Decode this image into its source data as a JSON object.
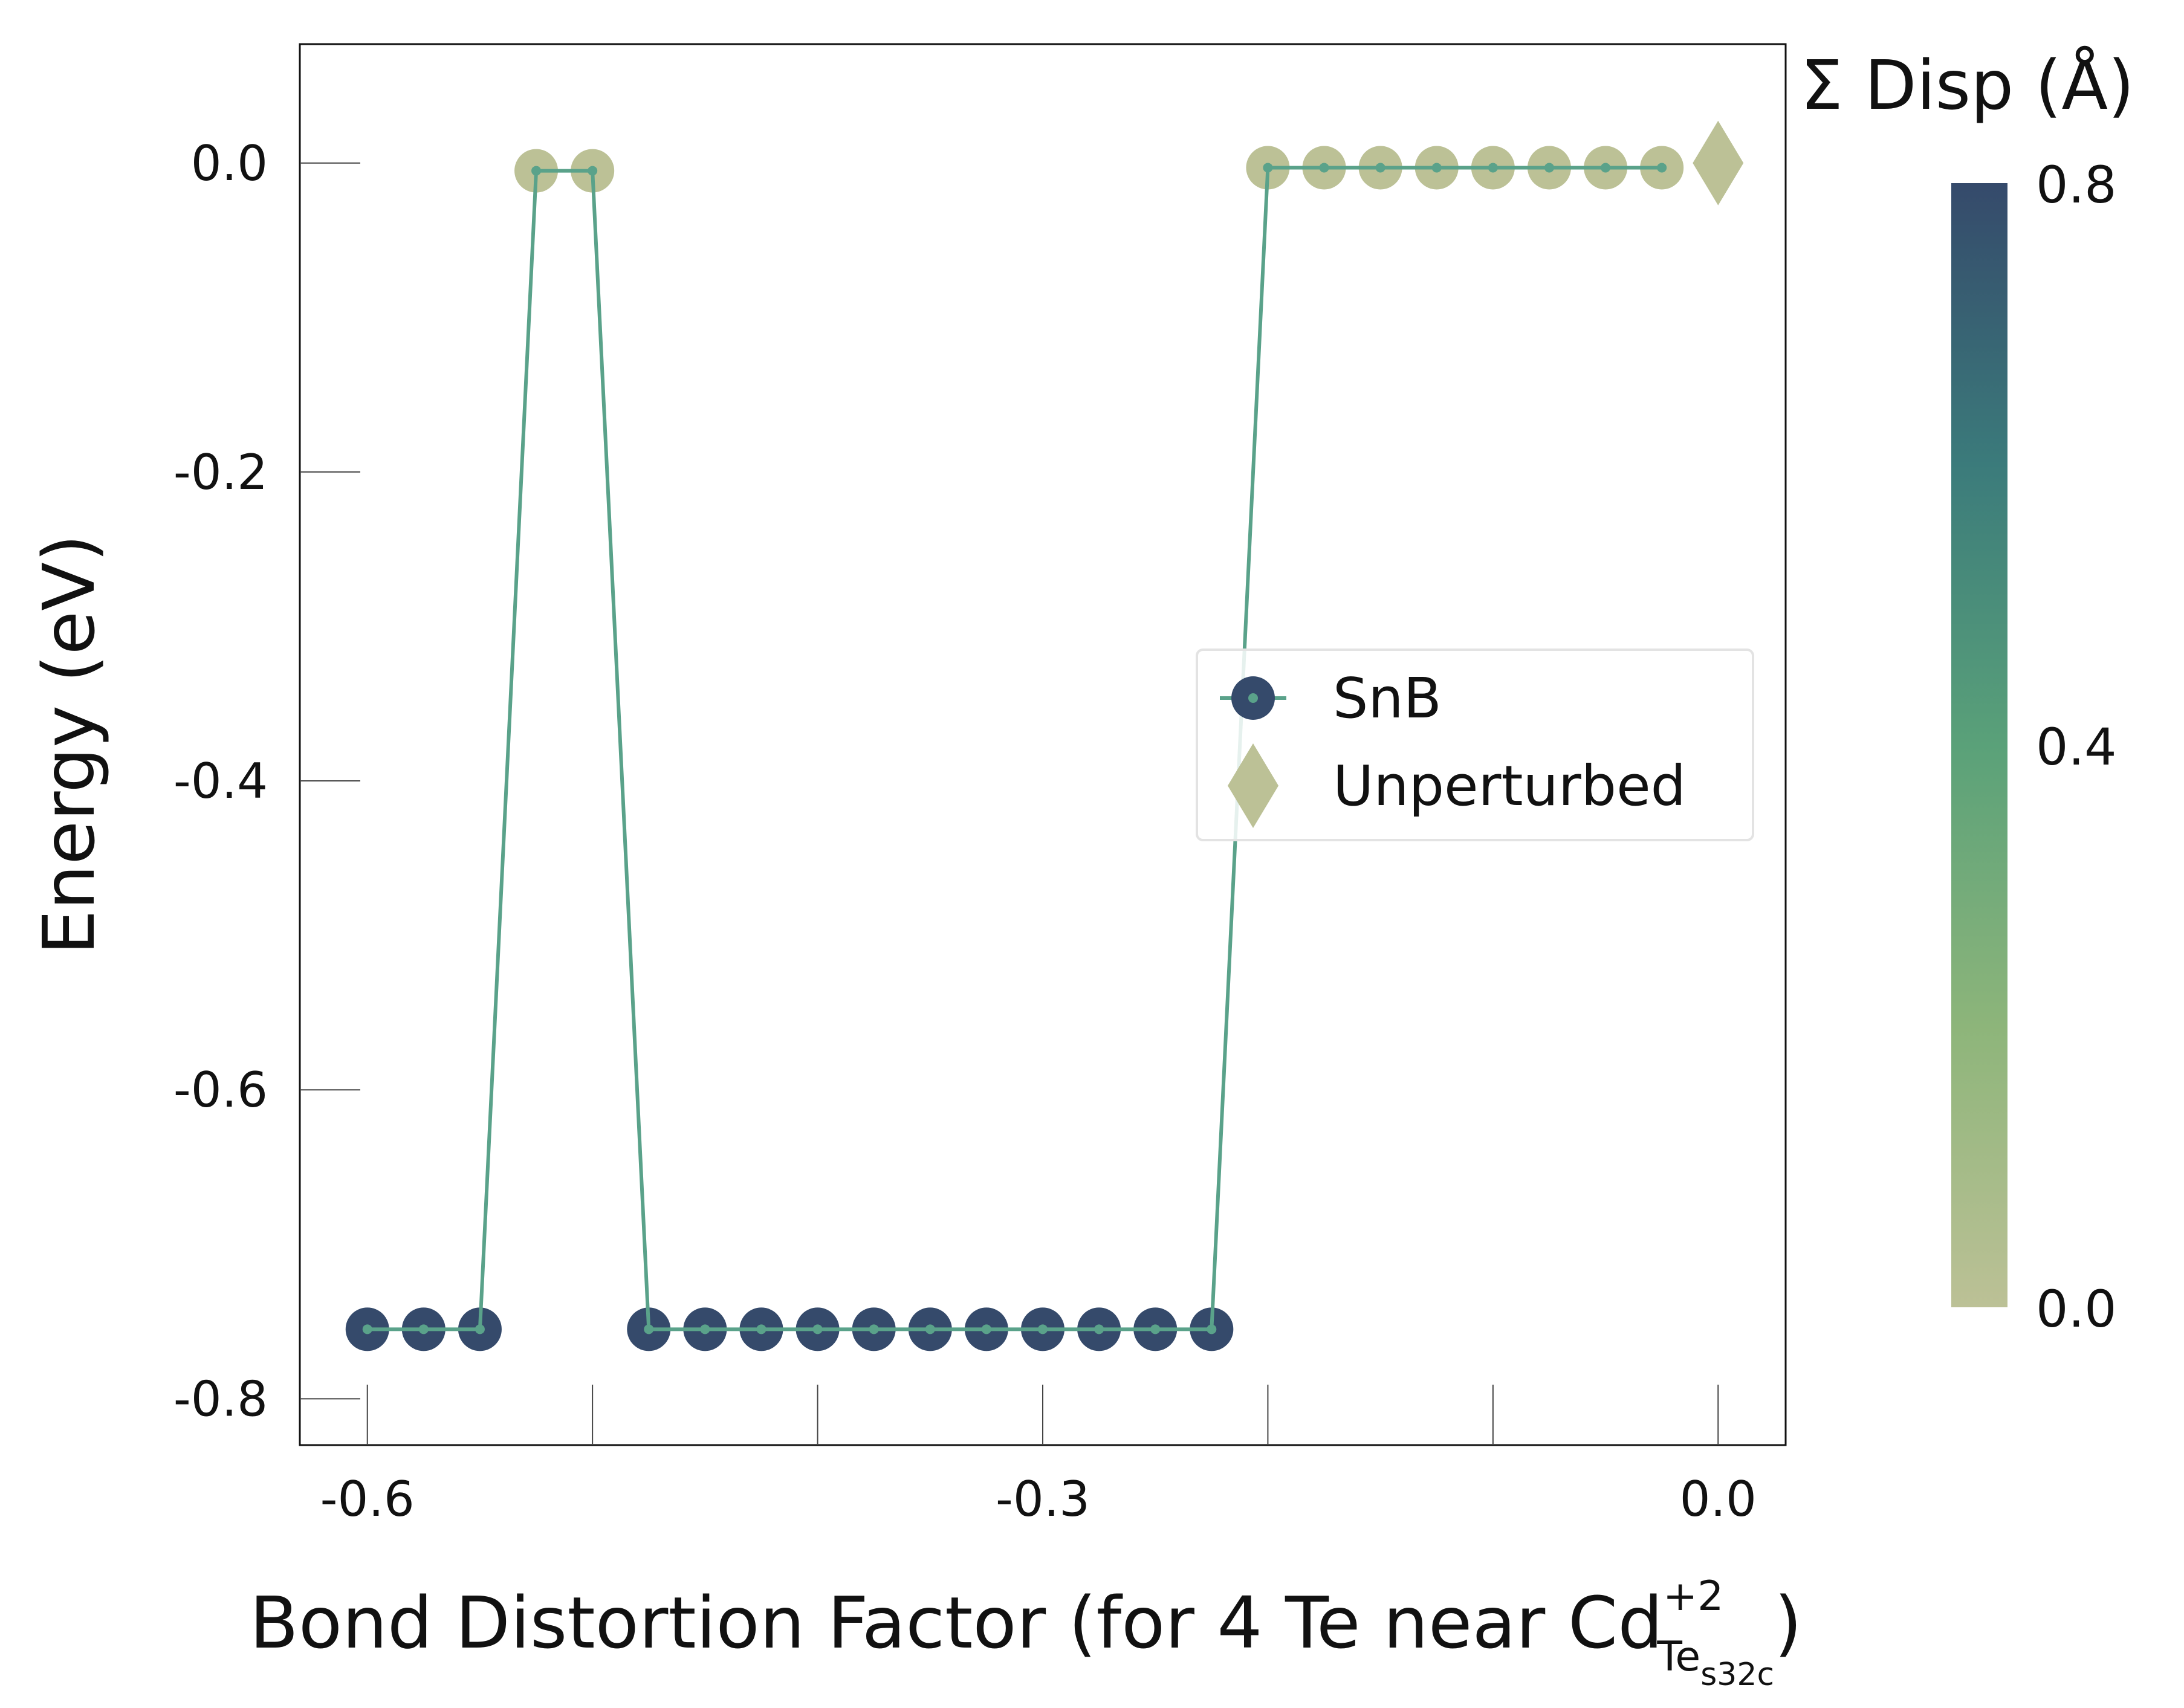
{
  "chart_data": {
    "type": "scatter",
    "title": "",
    "xlabel": "Bond Distortion Factor (for 4 Te near Cd",
    "xlabel_super": "+2",
    "xlabel_sub": "Te",
    "xlabel_subsub": "s32c",
    "xlabel_close": ")",
    "ylabel": "Energy (eV)",
    "xlim": [
      -0.63,
      0.03
    ],
    "ylim": [
      -0.83,
      0.077
    ],
    "xticks": [
      -0.6,
      -0.5,
      -0.4,
      -0.3,
      -0.2,
      -0.1,
      0.0
    ],
    "xtick_labels": [
      "-0.6",
      "",
      "",
      "-0.3",
      "",
      "",
      "0.0"
    ],
    "yticks": [
      0.0,
      -0.2,
      -0.4,
      -0.6,
      -0.8
    ],
    "ytick_labels": [
      "0.0",
      "-0.2",
      "-0.4",
      "-0.6",
      "-0.8"
    ],
    "grid": false,
    "legend_position": "center-right",
    "line_color": "#5aa28a",
    "series": [
      {
        "name": "SnB",
        "marker": "circle",
        "x": [
          -0.6,
          -0.575,
          -0.55,
          -0.525,
          -0.5,
          -0.475,
          -0.45,
          -0.425,
          -0.4,
          -0.375,
          -0.35,
          -0.325,
          -0.3,
          -0.275,
          -0.25,
          -0.225,
          -0.2,
          -0.175,
          -0.15,
          -0.125,
          -0.1,
          -0.075,
          -0.05,
          -0.025
        ],
        "y": [
          -0.755,
          -0.755,
          -0.755,
          -0.005,
          -0.005,
          -0.755,
          -0.755,
          -0.755,
          -0.755,
          -0.755,
          -0.755,
          -0.755,
          -0.755,
          -0.755,
          -0.755,
          -0.755,
          -0.003,
          -0.003,
          -0.003,
          -0.003,
          -0.003,
          -0.003,
          -0.003,
          -0.003
        ],
        "disp": [
          0.8,
          0.8,
          0.8,
          0.0,
          0.0,
          0.8,
          0.8,
          0.8,
          0.8,
          0.8,
          0.8,
          0.8,
          0.8,
          0.8,
          0.8,
          0.8,
          0.0,
          0.0,
          0.0,
          0.0,
          0.0,
          0.0,
          0.0,
          0.0
        ]
      },
      {
        "name": "Unperturbed",
        "marker": "diamond",
        "x": [
          0.0
        ],
        "y": [
          0.0
        ],
        "disp": [
          0.0
        ]
      }
    ],
    "colorbar": {
      "title": "Σ Disp (Å)",
      "range": [
        0.0,
        0.8
      ],
      "ticks": [
        0.0,
        0.4,
        0.8
      ],
      "tick_labels": [
        "0.0",
        "0.4",
        "0.8"
      ],
      "colors": [
        "#bcc196",
        "#8db57a",
        "#5aa179",
        "#3b7b7b",
        "#354a6b"
      ]
    },
    "legend": [
      {
        "label": "SnB",
        "marker": "circle",
        "color": "#354a6b"
      },
      {
        "label": "Unperturbed",
        "marker": "diamond",
        "color": "#bcc196"
      }
    ]
  }
}
